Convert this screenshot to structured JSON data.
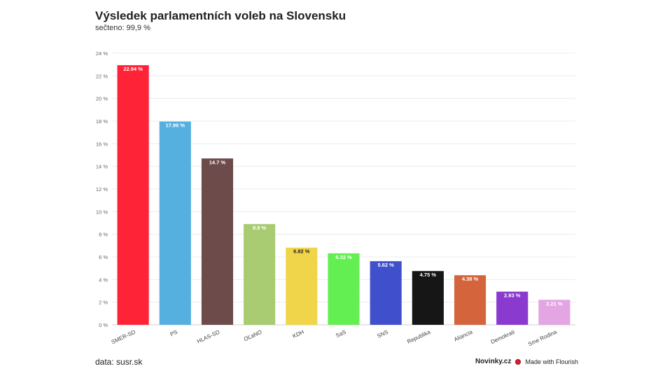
{
  "chart_data": {
    "type": "bar",
    "title": "Výsledek parlamentních voleb na Slovensku",
    "subtitle": "sečteno: 99,9 %",
    "xlabel": "",
    "ylabel": "",
    "ylim": [
      0,
      24
    ],
    "yticks": [
      "0 %",
      "2 %",
      "4 %",
      "6 %",
      "8 %",
      "10 %",
      "12 %",
      "14 %",
      "16 %",
      "18 %",
      "20 %",
      "22 %",
      "24 %"
    ],
    "grid": true,
    "categories": [
      "SMER-SD",
      "PS",
      "HLAS-SD",
      "OĽaNO",
      "KDH",
      "SaS",
      "SNS",
      "Republika",
      "Aliancia",
      "Demokrati",
      "Sme Rodina"
    ],
    "values": [
      22.94,
      17.96,
      14.7,
      8.9,
      6.82,
      6.32,
      5.62,
      4.75,
      4.38,
      2.93,
      2.21
    ],
    "value_labels": [
      "22.94 %",
      "17.96 %",
      "14.7 %",
      "8.9 %",
      "6.82 %",
      "6.32 %",
      "5.62 %",
      "4.75 %",
      "4.38 %",
      "2.93 %",
      "2.21 %"
    ],
    "colors": [
      "#ff2338",
      "#55b0e0",
      "#6e4b4b",
      "#a9cb72",
      "#f0d54a",
      "#63ef52",
      "#4050cc",
      "#161616",
      "#d4643c",
      "#8b3ad0",
      "#e3a6e3"
    ],
    "label_colors": [
      "#ffffff",
      "#ffffff",
      "#ffffff",
      "#ffffff",
      "#222222",
      "#ffffff",
      "#ffffff",
      "#ffffff",
      "#ffffff",
      "#ffffff",
      "#ffffff"
    ]
  },
  "footer": {
    "source": "data: susr.sk",
    "brand": "Novinky.cz",
    "made_with": "Made with Flourish",
    "accent": "#e8192c"
  }
}
